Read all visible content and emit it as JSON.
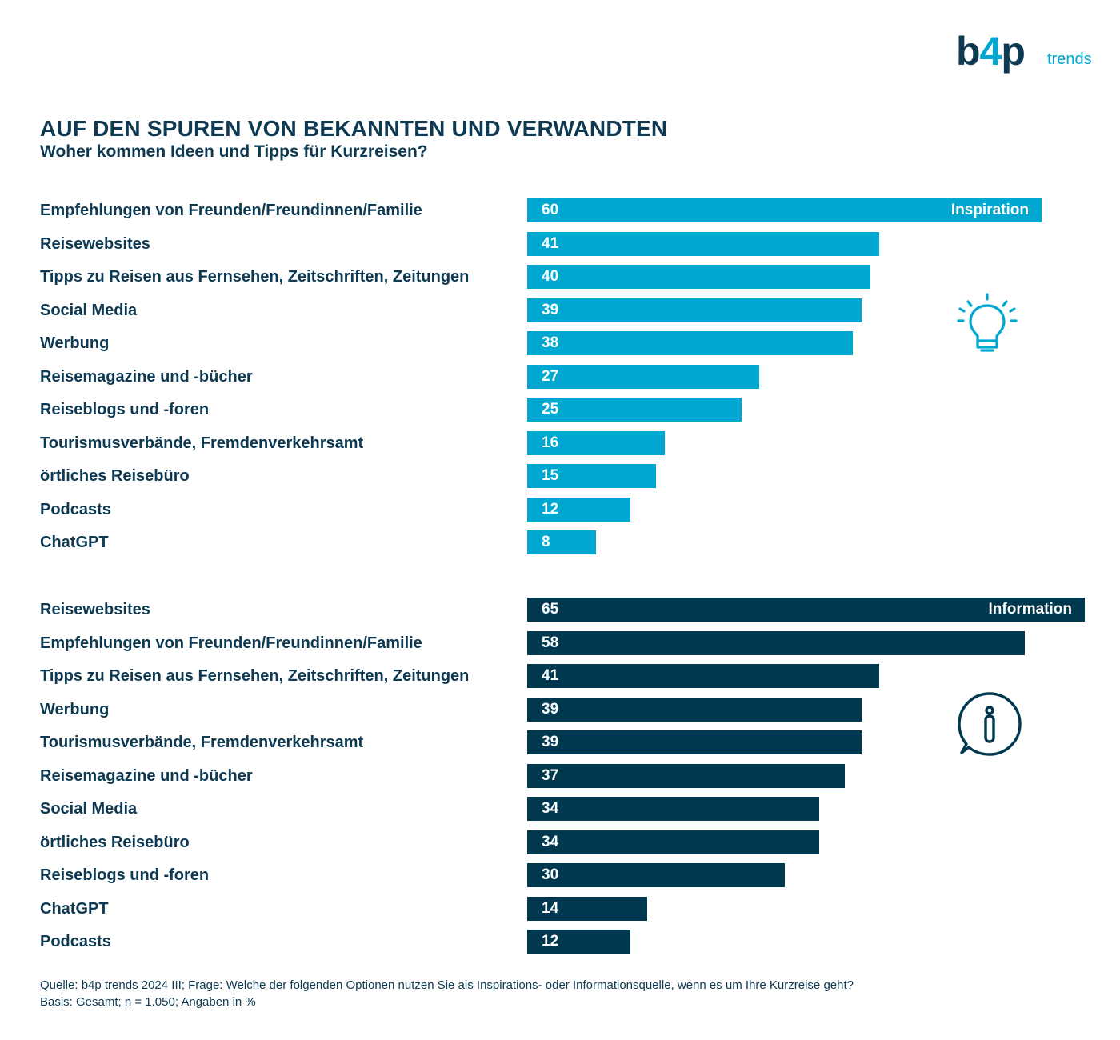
{
  "logo": {
    "main_left": "b",
    "main_four": "4",
    "main_right": "p",
    "sub": "trends"
  },
  "header": {
    "title": "AUF DEN SPUREN VON BEKANNTEN UND VERWANDTEN",
    "subtitle": "Woher kommen Ideen und Tipps für Kurzreisen?"
  },
  "colors": {
    "inspiration": "#00a7d0",
    "information": "#00384f",
    "text": "#0d3a52"
  },
  "icons": {
    "inspiration": "lightbulb-icon",
    "information": "info-bubble-icon"
  },
  "chart_data": [
    {
      "type": "bar",
      "orientation": "horizontal",
      "title": "Inspiration",
      "categories": [
        "Empfehlungen von Freunden/Freundinnen/Familie",
        "Reisewebsites",
        "Tipps zu Reisen aus Fernsehen, Zeitschriften, Zeitungen",
        "Social Media",
        "Werbung",
        "Reisemagazine und -bücher",
        "Reiseblogs und -foren",
        "Tourismusverbände, Fremdenverkehrsamt",
        "örtliches Reisebüro",
        "Podcasts",
        "ChatGPT"
      ],
      "values": [
        60,
        41,
        40,
        39,
        38,
        27,
        25,
        16,
        15,
        12,
        8
      ],
      "xlim": [
        0,
        65
      ],
      "grid": false
    },
    {
      "type": "bar",
      "orientation": "horizontal",
      "title": "Information",
      "categories": [
        "Reisewebsites",
        "Empfehlungen von Freunden/Freundinnen/Familie",
        "Tipps zu Reisen aus Fernsehen, Zeitschriften, Zeitungen",
        "Werbung",
        "Tourismusverbände, Fremdenverkehrsamt",
        "Reisemagazine und -bücher",
        "Social Media",
        "örtliches Reisebüro",
        "Reiseblogs und -foren",
        "ChatGPT",
        "Podcasts"
      ],
      "values": [
        65,
        58,
        41,
        39,
        39,
        37,
        34,
        34,
        30,
        14,
        12
      ],
      "xlim": [
        0,
        65
      ],
      "grid": false
    }
  ],
  "footer": {
    "source": "Quelle: b4p trends 2024 III; Frage: Welche der folgenden Optionen nutzen Sie als Inspirations- oder Informationsquelle, wenn es um Ihre Kurzreise geht?",
    "basis": "Basis: Gesamt; n = 1.050; Angaben in %"
  }
}
